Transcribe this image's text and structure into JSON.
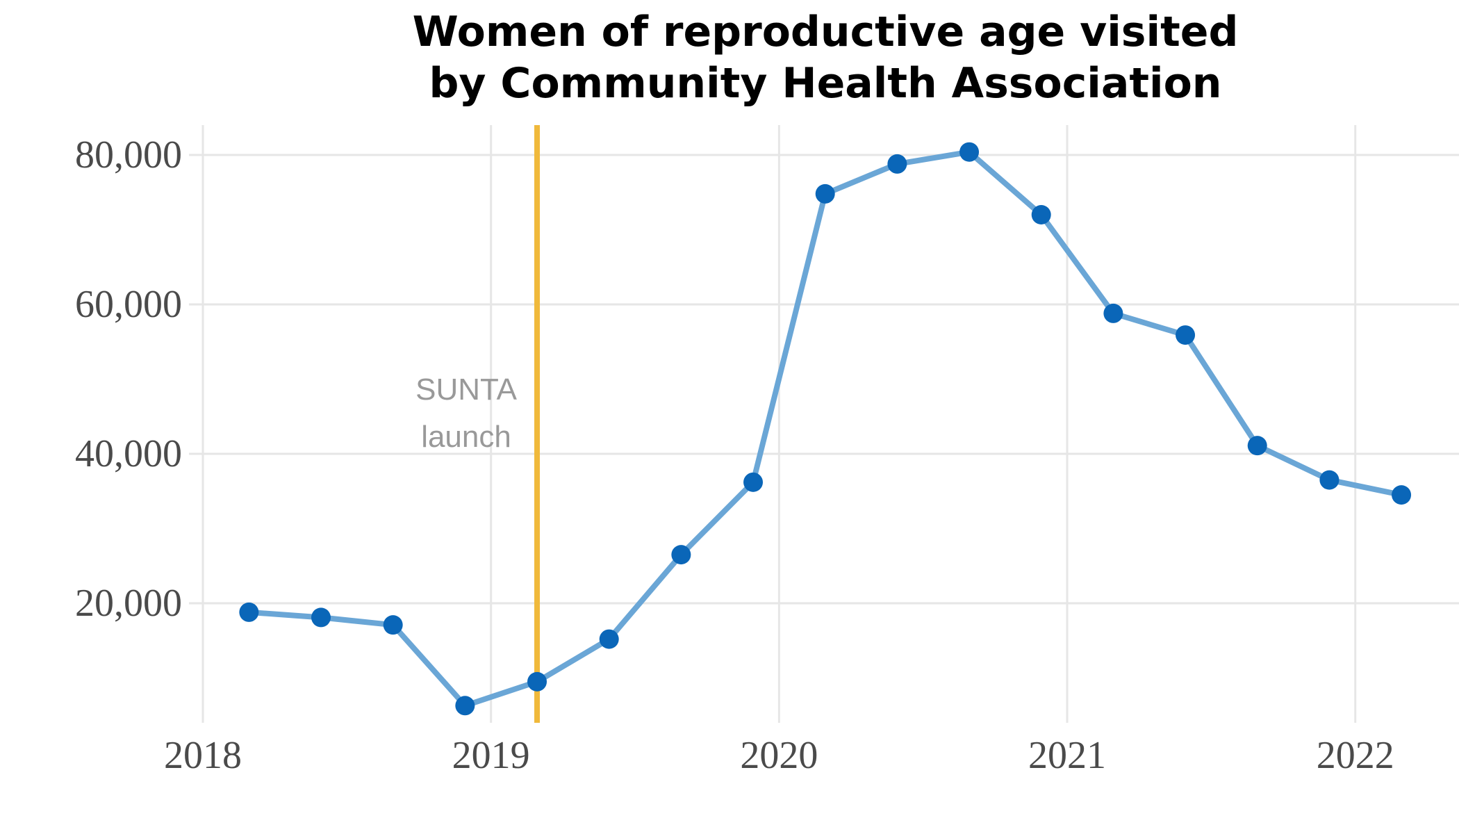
{
  "chart_data": {
    "type": "line",
    "title": [
      "Women of reproductive age visited",
      "by Community Health Association"
    ],
    "xlabel": "",
    "ylabel": "",
    "x_ticks": [
      {
        "value": 2018,
        "label": "2018"
      },
      {
        "value": 2019,
        "label": "2019"
      },
      {
        "value": 2020,
        "label": "2020"
      },
      {
        "value": 2021,
        "label": "2021"
      },
      {
        "value": 2022,
        "label": "2022"
      }
    ],
    "y_ticks": [
      {
        "value": 20000,
        "label": "20,000"
      },
      {
        "value": 40000,
        "label": "40,000"
      },
      {
        "value": 60000,
        "label": "60,000"
      },
      {
        "value": 80000,
        "label": "80,000"
      }
    ],
    "xlim": [
      2018.0,
      2022.36
    ],
    "ylim": [
      4000,
      84000
    ],
    "grid": true,
    "series": [
      {
        "line_color": "#6aa6d6",
        "point_color": "#0a66b8",
        "points": [
          {
            "x": 2018.16,
            "y": 18800
          },
          {
            "x": 2018.41,
            "y": 18100
          },
          {
            "x": 2018.66,
            "y": 17100
          },
          {
            "x": 2018.91,
            "y": 6300
          },
          {
            "x": 2019.16,
            "y": 9500
          },
          {
            "x": 2019.41,
            "y": 15200
          },
          {
            "x": 2019.66,
            "y": 26500
          },
          {
            "x": 2019.91,
            "y": 36200
          },
          {
            "x": 2020.16,
            "y": 74800
          },
          {
            "x": 2020.41,
            "y": 78800
          },
          {
            "x": 2020.66,
            "y": 80400
          },
          {
            "x": 2020.91,
            "y": 72000
          },
          {
            "x": 2021.16,
            "y": 58800
          },
          {
            "x": 2021.41,
            "y": 55900
          },
          {
            "x": 2021.66,
            "y": 41100
          },
          {
            "x": 2021.91,
            "y": 36500
          },
          {
            "x": 2022.16,
            "y": 34500
          }
        ]
      }
    ],
    "annotations": [
      {
        "type": "vline",
        "x": 2019.16,
        "color": "#f0b93b",
        "text": [
          "SUNTA",
          "launch"
        ]
      }
    ]
  }
}
